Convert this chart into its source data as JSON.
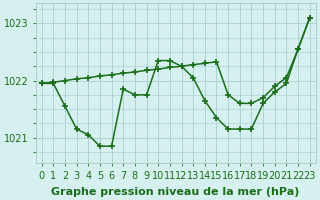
{
  "x": [
    0,
    1,
    2,
    3,
    4,
    5,
    6,
    7,
    8,
    9,
    10,
    11,
    12,
    13,
    14,
    15,
    16,
    17,
    18,
    19,
    20,
    21,
    22,
    23
  ],
  "series1": [
    1021.95,
    1021.95,
    1021.55,
    1021.15,
    1021.05,
    1020.85,
    1020.85,
    1021.85,
    1021.75,
    1021.75,
    1022.35,
    1022.35,
    1022.25,
    1022.05,
    1021.65,
    1021.35,
    1021.15,
    1021.15,
    1021.15,
    1021.6,
    1021.8,
    1021.95,
    1022.55,
    1023.1
  ],
  "series2": [
    1021.95,
    1021.97,
    1022.0,
    1022.03,
    1022.05,
    1022.08,
    1022.1,
    1022.13,
    1022.15,
    1022.18,
    1022.2,
    1022.23,
    1022.25,
    1022.28,
    1022.3,
    1022.33,
    1021.75,
    1021.6,
    1021.6,
    1021.7,
    1021.9,
    1022.05,
    1022.55,
    1023.1
  ],
  "line_color": "#1a6e1a",
  "bg_color": "#d6f0f0",
  "grid_color": "#a8cece",
  "ylabel_ticks": [
    1021,
    1022,
    1023
  ],
  "xlabel": "Graphe pression niveau de la mer (hPa)",
  "xlim": [
    -0.5,
    23.5
  ],
  "ylim": [
    1020.55,
    1023.35
  ],
  "xlabel_fontsize": 8,
  "tick_fontsize": 7,
  "line_width": 1.1,
  "marker": "+",
  "marker_size": 4,
  "marker_ew": 1.2
}
